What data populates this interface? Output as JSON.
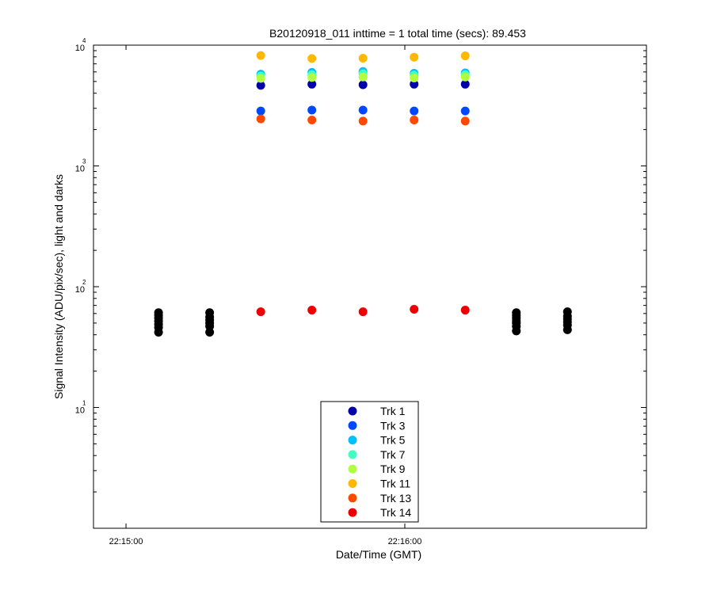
{
  "chart_data": {
    "type": "scatter",
    "title": "B20120918_011 inttime = 1 total time (secs): 89.453",
    "xlabel": "Date/Time (GMT)",
    "ylabel": "Signal Intensity (ADU/pix/sec), light and darks",
    "yscale": "log",
    "ylim": [
      1,
      10000
    ],
    "xlim": [
      "22:14:53",
      "22:16:52"
    ],
    "x_ticks": [
      "22:15:00",
      "22:16:00"
    ],
    "y_ticks": [
      {
        "base": "10",
        "exp": "1",
        "value": 10
      },
      {
        "base": "10",
        "exp": "2",
        "value": 100
      },
      {
        "base": "10",
        "exp": "3",
        "value": 1000
      },
      {
        "base": "10",
        "exp": "4",
        "value": 10000
      }
    ],
    "grid": false,
    "legend_position": "bottom-center",
    "light_times": [
      "22:15:29",
      "22:15:40",
      "22:15:51",
      "22:16:02",
      "22:16:13"
    ],
    "dark_times": [
      "22:15:07",
      "22:15:18",
      "22:16:24",
      "22:16:35"
    ],
    "series": [
      {
        "name": "Trk 1",
        "color": "#0000AA",
        "values": [
          4650,
          4750,
          4700,
          4750,
          4750
        ]
      },
      {
        "name": "Trk 3",
        "color": "#0048FF",
        "values": [
          2850,
          2900,
          2900,
          2850,
          2850
        ]
      },
      {
        "name": "Trk 5",
        "color": "#00BFFF",
        "values": [
          5750,
          5950,
          6050,
          5850,
          5900
        ]
      },
      {
        "name": "Trk 7",
        "color": "#40FFBF",
        "values": [
          5550,
          5700,
          5800,
          5650,
          5700
        ]
      },
      {
        "name": "Trk 9",
        "color": "#B0FF40",
        "values": [
          5300,
          5400,
          5450,
          5350,
          5450
        ]
      },
      {
        "name": "Trk 11",
        "color": "#FFB800",
        "values": [
          8200,
          7750,
          7800,
          7950,
          8150
        ]
      },
      {
        "name": "Trk 13",
        "color": "#FF4800",
        "values": [
          2450,
          2400,
          2350,
          2400,
          2350
        ]
      },
      {
        "name": "Trk 14",
        "color": "#EE0000",
        "values": [
          62,
          64,
          62,
          65,
          64
        ]
      }
    ],
    "darks": {
      "color": "#000000",
      "values": [
        [
          42,
          46,
          49,
          52,
          55,
          58,
          61
        ],
        [
          42,
          47,
          50,
          53,
          56,
          61
        ],
        [
          43,
          47,
          50,
          52,
          55,
          58,
          61
        ],
        [
          44,
          48,
          51,
          54,
          57,
          62
        ]
      ]
    }
  }
}
